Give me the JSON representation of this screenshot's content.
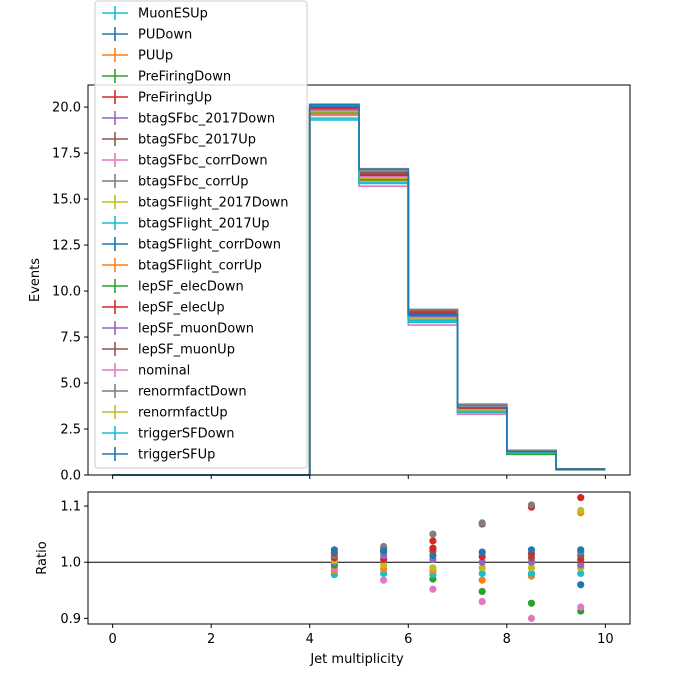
{
  "chart_data": [
    {
      "type": "line",
      "ylabel": "Events",
      "xlim": [
        -0.5,
        10.5
      ],
      "ylim": [
        0,
        21.2
      ],
      "yticks": [
        0.0,
        2.5,
        5.0,
        7.5,
        10.0,
        12.5,
        15.0,
        17.5,
        20.0
      ],
      "ytick_labels": [
        "0.0",
        "2.5",
        "5.0",
        "7.5",
        "10.0",
        "12.5",
        "15.0",
        "17.5",
        "20.0"
      ],
      "xticks": [
        0,
        2,
        4,
        6,
        8,
        10
      ],
      "bin_edges": [
        0,
        1,
        2,
        3,
        4,
        5,
        6,
        7,
        8,
        9,
        10
      ],
      "legend_position": "upper-left",
      "series": [
        {
          "name": "MuonESUp",
          "color": "#17becf",
          "values": [
            0,
            0,
            0,
            0,
            19.72,
            16.1,
            8.5,
            3.5,
            1.22,
            0.3
          ]
        },
        {
          "name": "PUDown",
          "color": "#1f77b4",
          "values": [
            0,
            0,
            0,
            0,
            20.05,
            16.4,
            8.75,
            3.62,
            1.26,
            0.3
          ]
        },
        {
          "name": "PUUp",
          "color": "#ff7f0e",
          "values": [
            0,
            0,
            0,
            0,
            19.55,
            16.0,
            8.42,
            3.45,
            1.2,
            0.3
          ]
        },
        {
          "name": "PreFiringDown",
          "color": "#2ca02c",
          "values": [
            0,
            0,
            0,
            0,
            19.9,
            16.2,
            8.55,
            3.55,
            1.23,
            0.3
          ]
        },
        {
          "name": "PreFiringUp",
          "color": "#d62728",
          "values": [
            0,
            0,
            0,
            0,
            19.95,
            16.45,
            8.95,
            3.62,
            1.33,
            0.33
          ]
        },
        {
          "name": "btagSFbc_2017Down",
          "color": "#9467bd",
          "values": [
            0,
            0,
            0,
            0,
            19.8,
            16.25,
            8.6,
            3.55,
            1.25,
            0.31
          ]
        },
        {
          "name": "btagSFbc_2017Up",
          "color": "#8c564b",
          "values": [
            0,
            0,
            0,
            0,
            19.85,
            16.35,
            8.7,
            3.58,
            1.24,
            0.3
          ]
        },
        {
          "name": "btagSFbc_corrDown",
          "color": "#e377c2",
          "values": [
            0,
            0,
            0,
            0,
            19.6,
            15.7,
            8.15,
            3.3,
            1.12,
            0.28
          ]
        },
        {
          "name": "btagSFbc_corrUp",
          "color": "#7f7f7f",
          "values": [
            0,
            0,
            0,
            0,
            20.1,
            16.65,
            9.0,
            3.85,
            1.33,
            0.33
          ]
        },
        {
          "name": "btagSFlight_2017Down",
          "color": "#bcbd22",
          "values": [
            0,
            0,
            0,
            0,
            19.75,
            16.1,
            8.45,
            3.5,
            1.22,
            0.3
          ]
        },
        {
          "name": "btagSFlight_2017Up",
          "color": "#17becf",
          "values": [
            0,
            0,
            0,
            0,
            19.3,
            15.85,
            8.3,
            3.4,
            1.18,
            0.29
          ]
        },
        {
          "name": "btagSFlight_corrDown",
          "color": "#1f77b4",
          "values": [
            0,
            0,
            0,
            0,
            20.02,
            16.3,
            8.65,
            3.58,
            1.25,
            0.3
          ]
        },
        {
          "name": "btagSFlight_corrUp",
          "color": "#ff7f0e",
          "values": [
            0,
            0,
            0,
            0,
            19.65,
            16.15,
            8.55,
            3.52,
            1.3,
            0.33
          ]
        },
        {
          "name": "lepSF_elecDown",
          "color": "#2ca02c",
          "values": [
            0,
            0,
            0,
            0,
            19.7,
            16.05,
            8.4,
            3.44,
            1.13,
            0.28
          ]
        },
        {
          "name": "lepSF_elecUp",
          "color": "#d62728",
          "values": [
            0,
            0,
            0,
            0,
            19.88,
            16.3,
            8.8,
            3.6,
            1.26,
            0.31
          ]
        },
        {
          "name": "lepSF_muonDown",
          "color": "#9467bd",
          "values": [
            0,
            0,
            0,
            0,
            19.78,
            16.18,
            8.58,
            3.54,
            1.23,
            0.3
          ]
        },
        {
          "name": "lepSF_muonUp",
          "color": "#8c564b",
          "values": [
            0,
            0,
            0,
            0,
            19.82,
            16.42,
            8.88,
            3.78,
            1.33,
            0.33
          ]
        },
        {
          "name": "nominal",
          "color": "#e377c2",
          "values": [
            0,
            0,
            0,
            0,
            19.8,
            16.2,
            8.55,
            3.55,
            1.21,
            0.3
          ]
        },
        {
          "name": "renormfactDown",
          "color": "#7f7f7f",
          "values": [
            0,
            0,
            0,
            0,
            19.86,
            16.5,
            8.98,
            3.8,
            1.33,
            0.3
          ]
        },
        {
          "name": "renormfactUp",
          "color": "#bcbd22",
          "values": [
            0,
            0,
            0,
            0,
            19.74,
            16.15,
            8.48,
            3.5,
            1.22,
            0.3
          ]
        },
        {
          "name": "triggerSFDown",
          "color": "#17becf",
          "values": [
            0,
            0,
            0,
            0,
            19.4,
            15.9,
            8.4,
            3.45,
            1.19,
            0.29
          ]
        },
        {
          "name": "triggerSFUp",
          "color": "#1f77b4",
          "values": [
            0,
            0,
            0,
            0,
            20.15,
            16.6,
            8.7,
            3.68,
            1.27,
            0.31
          ]
        }
      ]
    },
    {
      "type": "scatter",
      "xlabel": "Jet multiplicity",
      "ylabel": "Ratio",
      "xlim": [
        -0.5,
        10.5
      ],
      "ylim": [
        0.89,
        1.125
      ],
      "xticks": [
        0,
        2,
        4,
        6,
        8,
        10
      ],
      "xtick_labels": [
        "0",
        "2",
        "4",
        "6",
        "8",
        "10"
      ],
      "yticks": [
        0.9,
        1.0,
        1.1
      ],
      "ytick_labels": [
        "0.9",
        "1.0",
        "1.1"
      ],
      "reference_line": 1.0,
      "points": [
        {
          "x": 4.5,
          "y": 0.978,
          "color": "#17becf"
        },
        {
          "x": 4.5,
          "y": 0.985,
          "color": "#ff7f0e"
        },
        {
          "x": 4.5,
          "y": 0.99,
          "color": "#e377c2"
        },
        {
          "x": 4.5,
          "y": 0.995,
          "color": "#2ca02c"
        },
        {
          "x": 4.5,
          "y": 1.0,
          "color": "#9467bd"
        },
        {
          "x": 4.5,
          "y": 1.003,
          "color": "#bcbd22"
        },
        {
          "x": 4.5,
          "y": 1.008,
          "color": "#d62728"
        },
        {
          "x": 4.5,
          "y": 1.012,
          "color": "#7f7f7f"
        },
        {
          "x": 4.5,
          "y": 1.016,
          "color": "#8c564b"
        },
        {
          "x": 4.5,
          "y": 1.022,
          "color": "#1f77b4"
        },
        {
          "x": 5.5,
          "y": 0.968,
          "color": "#e377c2"
        },
        {
          "x": 5.5,
          "y": 0.98,
          "color": "#17becf"
        },
        {
          "x": 5.5,
          "y": 0.988,
          "color": "#ff7f0e"
        },
        {
          "x": 5.5,
          "y": 0.995,
          "color": "#bcbd22"
        },
        {
          "x": 5.5,
          "y": 1.005,
          "color": "#d62728"
        },
        {
          "x": 5.5,
          "y": 1.012,
          "color": "#9467bd"
        },
        {
          "x": 5.5,
          "y": 1.018,
          "color": "#7f7f7f"
        },
        {
          "x": 5.5,
          "y": 1.024,
          "color": "#8c564b"
        },
        {
          "x": 5.5,
          "y": 1.028,
          "color": "#7f7f7f"
        },
        {
          "x": 5.5,
          "y": 1.02,
          "color": "#1f77b4"
        },
        {
          "x": 6.5,
          "y": 0.952,
          "color": "#e377c2"
        },
        {
          "x": 6.5,
          "y": 0.97,
          "color": "#2ca02c"
        },
        {
          "x": 6.5,
          "y": 0.978,
          "color": "#17becf"
        },
        {
          "x": 6.5,
          "y": 0.985,
          "color": "#ff7f0e"
        },
        {
          "x": 6.5,
          "y": 0.99,
          "color": "#bcbd22"
        },
        {
          "x": 6.5,
          "y": 1.005,
          "color": "#9467bd"
        },
        {
          "x": 6.5,
          "y": 1.012,
          "color": "#1f77b4"
        },
        {
          "x": 6.5,
          "y": 1.02,
          "color": "#8c564b"
        },
        {
          "x": 6.5,
          "y": 1.025,
          "color": "#d62728"
        },
        {
          "x": 6.5,
          "y": 1.038,
          "color": "#d62728"
        },
        {
          "x": 6.5,
          "y": 1.05,
          "color": "#7f7f7f"
        },
        {
          "x": 7.5,
          "y": 0.93,
          "color": "#e377c2"
        },
        {
          "x": 7.5,
          "y": 0.948,
          "color": "#2ca02c"
        },
        {
          "x": 7.5,
          "y": 0.968,
          "color": "#ff7f0e"
        },
        {
          "x": 7.5,
          "y": 0.98,
          "color": "#17becf"
        },
        {
          "x": 7.5,
          "y": 0.99,
          "color": "#bcbd22"
        },
        {
          "x": 7.5,
          "y": 1.0,
          "color": "#9467bd"
        },
        {
          "x": 7.5,
          "y": 1.01,
          "color": "#d62728"
        },
        {
          "x": 7.5,
          "y": 1.018,
          "color": "#1f77b4"
        },
        {
          "x": 7.5,
          "y": 1.068,
          "color": "#8c564b"
        },
        {
          "x": 7.5,
          "y": 1.07,
          "color": "#7f7f7f"
        },
        {
          "x": 8.5,
          "y": 0.9,
          "color": "#e377c2"
        },
        {
          "x": 8.5,
          "y": 0.927,
          "color": "#2ca02c"
        },
        {
          "x": 8.5,
          "y": 0.975,
          "color": "#ff7f0e"
        },
        {
          "x": 8.5,
          "y": 0.98,
          "color": "#17becf"
        },
        {
          "x": 8.5,
          "y": 0.99,
          "color": "#bcbd22"
        },
        {
          "x": 8.5,
          "y": 1.0,
          "color": "#9467bd"
        },
        {
          "x": 8.5,
          "y": 1.008,
          "color": "#8c564b"
        },
        {
          "x": 8.5,
          "y": 1.015,
          "color": "#d62728"
        },
        {
          "x": 8.5,
          "y": 1.022,
          "color": "#1f77b4"
        },
        {
          "x": 8.5,
          "y": 1.098,
          "color": "#d62728"
        },
        {
          "x": 8.5,
          "y": 1.102,
          "color": "#7f7f7f"
        },
        {
          "x": 9.5,
          "y": 0.913,
          "color": "#2ca02c"
        },
        {
          "x": 9.5,
          "y": 0.92,
          "color": "#e377c2"
        },
        {
          "x": 9.5,
          "y": 0.96,
          "color": "#1f77b4"
        },
        {
          "x": 9.5,
          "y": 0.98,
          "color": "#17becf"
        },
        {
          "x": 9.5,
          "y": 0.99,
          "color": "#bcbd22"
        },
        {
          "x": 9.5,
          "y": 0.995,
          "color": "#9467bd"
        },
        {
          "x": 9.5,
          "y": 1.005,
          "color": "#d62728"
        },
        {
          "x": 9.5,
          "y": 1.012,
          "color": "#8c564b"
        },
        {
          "x": 9.5,
          "y": 1.018,
          "color": "#7f7f7f"
        },
        {
          "x": 9.5,
          "y": 1.022,
          "color": "#1f77b4"
        },
        {
          "x": 9.5,
          "y": 1.088,
          "color": "#ff7f0e"
        },
        {
          "x": 9.5,
          "y": 1.092,
          "color": "#bcbd22"
        },
        {
          "x": 9.5,
          "y": 1.115,
          "color": "#d62728"
        }
      ]
    }
  ]
}
